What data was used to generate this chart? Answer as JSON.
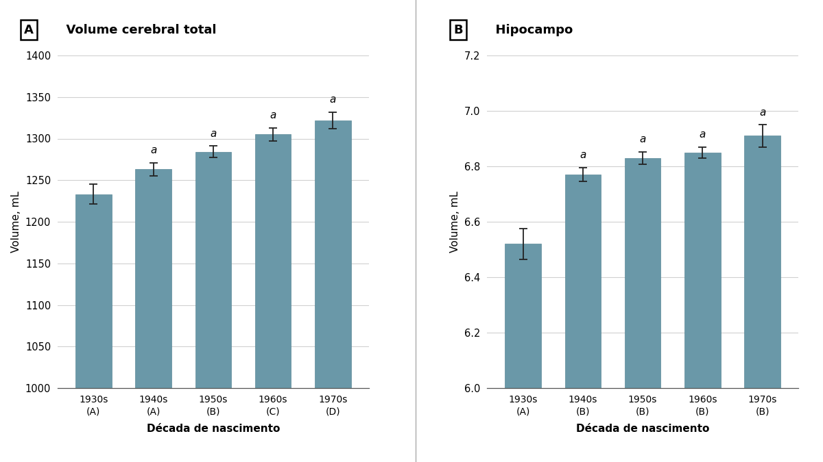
{
  "panel_A": {
    "title": "Volume cerebral total",
    "label": "A",
    "categories": [
      "1930s\n(A)",
      "1940s\n(A)",
      "1950s\n(B)",
      "1960s\n(C)",
      "1970s\n(D)"
    ],
    "values": [
      1233,
      1263,
      1284,
      1305,
      1322
    ],
    "errors": [
      12,
      8,
      7,
      8,
      10
    ],
    "sig_labels": [
      "",
      "a",
      "a",
      "a",
      "a"
    ],
    "ylim": [
      1000,
      1400
    ],
    "yticks": [
      1000,
      1050,
      1100,
      1150,
      1200,
      1250,
      1300,
      1350,
      1400
    ],
    "ylabel": "Volume, mL",
    "xlabel": "Década de nascimento"
  },
  "panel_B": {
    "title": "Hipocampo",
    "label": "B",
    "categories": [
      "1930s\n(A)",
      "1940s\n(B)",
      "1950s\n(B)",
      "1960s\n(B)",
      "1970s\n(B)"
    ],
    "values": [
      6.52,
      6.77,
      6.83,
      6.85,
      6.91
    ],
    "errors": [
      0.055,
      0.025,
      0.022,
      0.02,
      0.04
    ],
    "sig_labels": [
      "",
      "a",
      "a",
      "a",
      "a"
    ],
    "ylim": [
      6.0,
      7.2
    ],
    "yticks": [
      6.0,
      6.2,
      6.4,
      6.6,
      6.8,
      7.0,
      7.2
    ],
    "ylabel": "Volume, mL",
    "xlabel": "Década de nascimento"
  },
  "bar_color": "#6a98a8",
  "bar_edgecolor": "#5a8898",
  "error_color": "#222222",
  "background_color": "#ffffff",
  "grid_color": "#d0d0d0",
  "fig_background": "#ffffff",
  "divider_color": "#aaaaaa"
}
